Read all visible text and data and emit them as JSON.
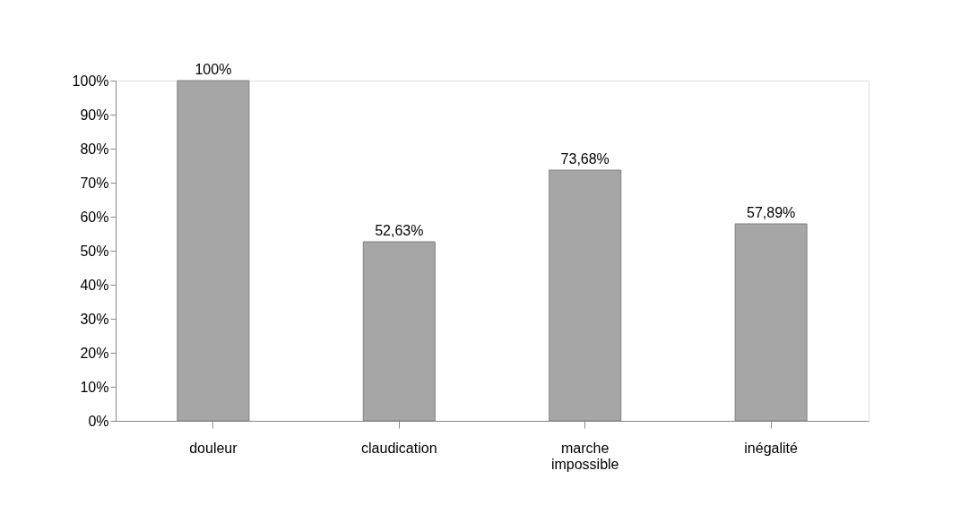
{
  "chart_data": {
    "type": "bar",
    "categories": [
      "douleur",
      "claudication",
      "marche impossible",
      "inégalité"
    ],
    "values": [
      100,
      52.63,
      73.68,
      57.89
    ],
    "value_labels": [
      "100%",
      "52,63%",
      "73,68%",
      "57,89%"
    ],
    "color": "#a6a6a6",
    "ylim": [
      0,
      100
    ],
    "yticks": [
      {
        "value": 0,
        "label": "0%"
      },
      {
        "value": 10,
        "label": "10%"
      },
      {
        "value": 20,
        "label": "20%"
      },
      {
        "value": 30,
        "label": "30%"
      },
      {
        "value": 40,
        "label": "40%"
      },
      {
        "value": 50,
        "label": "50%"
      },
      {
        "value": 60,
        "label": "60%"
      },
      {
        "value": 70,
        "label": "70%"
      },
      {
        "value": 80,
        "label": "80%"
      },
      {
        "value": 90,
        "label": "90%"
      },
      {
        "value": 100,
        "label": "100%"
      }
    ],
    "grid": false
  }
}
